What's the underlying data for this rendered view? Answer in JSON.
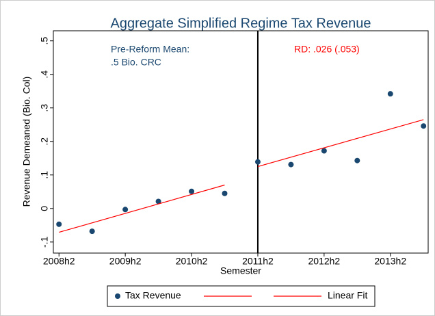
{
  "chart_data": {
    "type": "scatter",
    "title": "Aggregate Simplified Regime Tax Revenue",
    "x_label": "Semester",
    "y_label": "Revenue Demeaned (Bio. Col)",
    "series": [
      {
        "name": "Tax Revenue",
        "type": "scatter",
        "color": "#1a476f",
        "x": [
          97,
          98,
          99,
          100,
          101,
          102,
          103,
          104,
          105,
          106,
          107,
          108
        ],
        "values": [
          -0.047,
          -0.068,
          -0.003,
          0.021,
          0.051,
          0.045,
          0.139,
          0.131,
          0.172,
          0.143,
          0.342,
          0.246
        ]
      },
      {
        "type": "line",
        "color": "#ff0000",
        "x": [
          97,
          102
        ],
        "values": [
          -0.071,
          0.07
        ]
      },
      {
        "name": "Linear Fit",
        "type": "line",
        "color": "#ff0000",
        "x": [
          103,
          108
        ],
        "values": [
          0.125,
          0.265
        ]
      }
    ],
    "vline": 103,
    "xlim": [
      96.83,
      108.14
    ],
    "xticks": [
      {
        "value": 97,
        "label": "2008h2"
      },
      {
        "value": 99,
        "label": "2009h2"
      },
      {
        "value": 101,
        "label": "2010h2"
      },
      {
        "value": 103,
        "label": "2011h2"
      },
      {
        "value": 105,
        "label": "2012h2"
      },
      {
        "value": 107,
        "label": "2013h2"
      }
    ],
    "ylim": [
      -0.133,
      0.53
    ],
    "yticks": [
      {
        "value": -0.1,
        "label": "-.1"
      },
      0,
      {
        "value": 0.1,
        "label": ".1"
      },
      {
        "value": 0.2,
        "label": ".2"
      },
      {
        "value": 0.3,
        "label": ".3"
      },
      {
        "value": 0.4,
        "label": ".4"
      },
      {
        "value": 0.5,
        "label": ".5"
      }
    ],
    "annotations": [
      {
        "lines": [
          "Pre-Reform Mean:",
          ".5 Bio. CRC"
        ],
        "color": "#1a476f"
      },
      {
        "lines": [
          "RD: .026 (.053)"
        ],
        "color": "#ff0000"
      }
    ],
    "legend": "bottom"
  }
}
